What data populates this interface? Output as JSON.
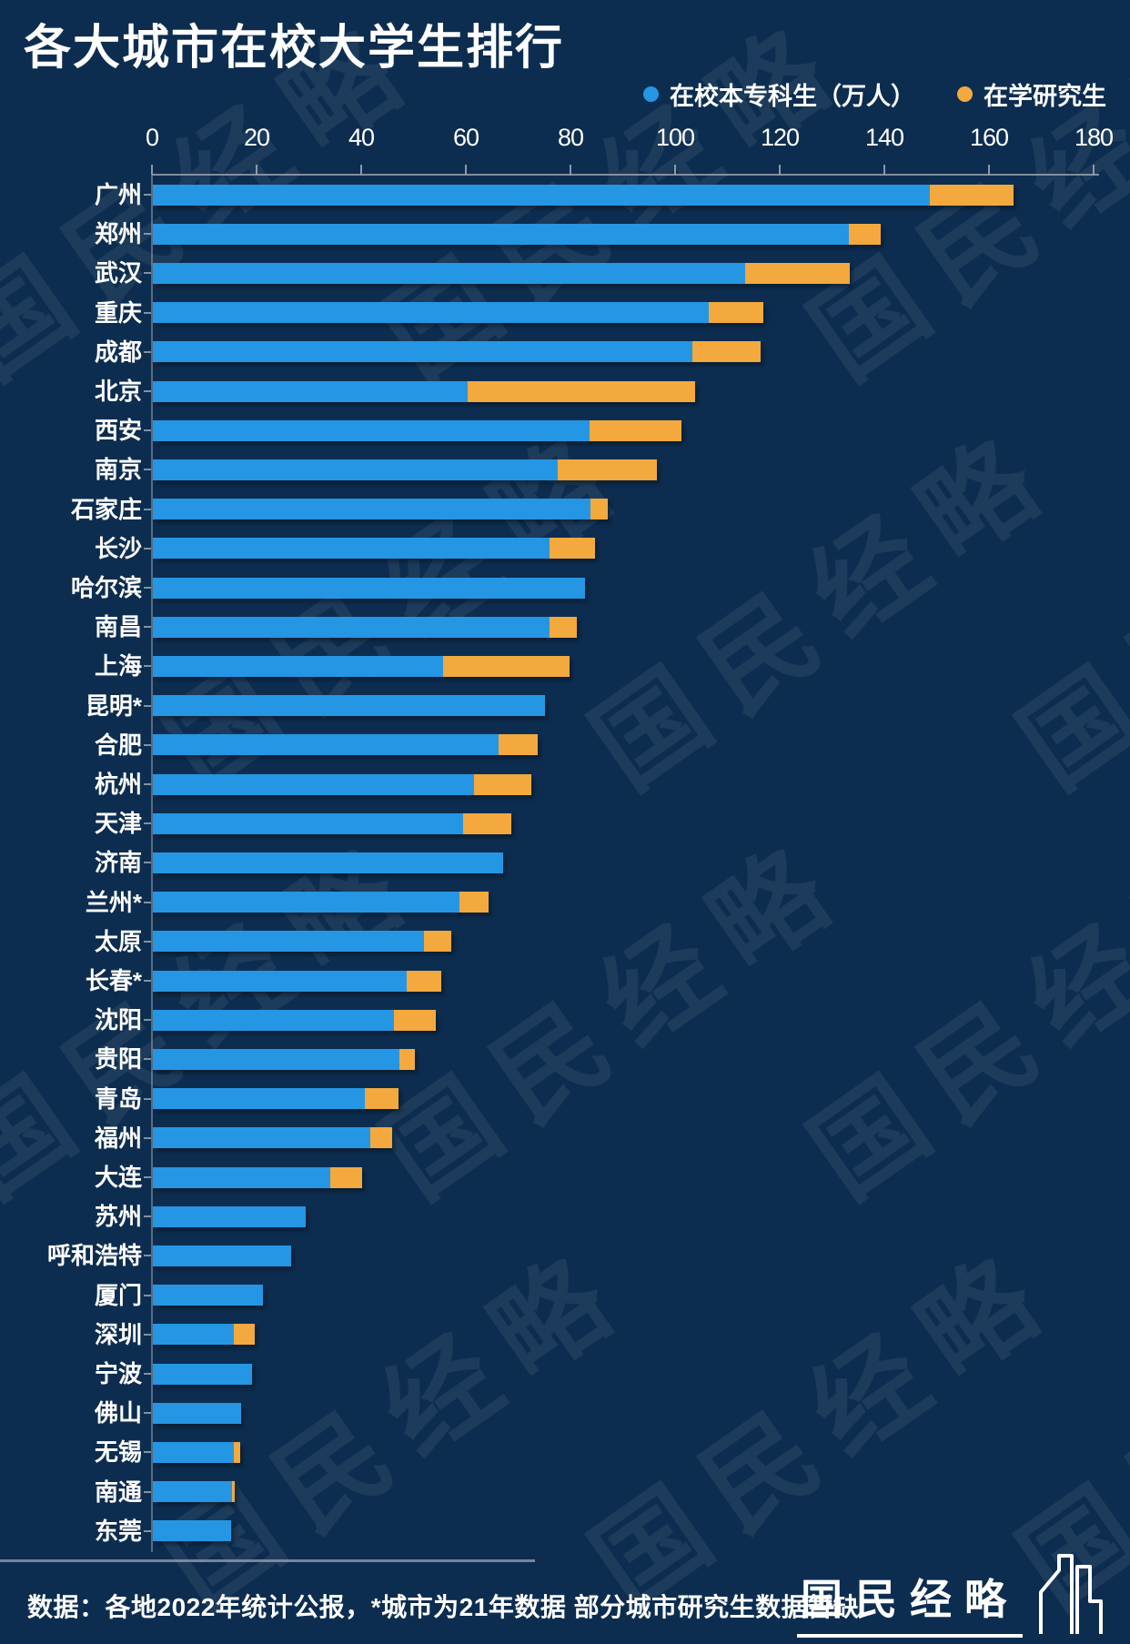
{
  "title": "各大城市在校大学生排行",
  "legend": [
    {
      "label": "在校本专科生（万人）",
      "color": "#2596e4"
    },
    {
      "label": "在学研究生",
      "color": "#f3a93d"
    }
  ],
  "colors": {
    "background": "#0d2d50",
    "undergrad_bar": "#2596e4",
    "grad_bar": "#f3a93d",
    "axis": "#96a0ad",
    "text": "#ffffff"
  },
  "watermark": {
    "text": "国民经略"
  },
  "chart_data": {
    "type": "bar",
    "orientation": "horizontal",
    "stacked": true,
    "title": "各大城市在校大学生排行",
    "unit": "万人",
    "xlim": [
      0,
      180
    ],
    "x_ticks": [
      0,
      20,
      40,
      60,
      80,
      100,
      120,
      140,
      160,
      180
    ],
    "grid": false,
    "legend_position": "top-right",
    "categories": [
      "广州",
      "郑州",
      "武汉",
      "重庆",
      "成都",
      "北京",
      "西安",
      "南京",
      "石家庄",
      "长沙",
      "哈尔滨",
      "南昌",
      "上海",
      "昆明*",
      "合肥",
      "杭州",
      "天津",
      "济南",
      "兰州*",
      "太原",
      "长春*",
      "沈阳",
      "贵阳",
      "青岛",
      "福州",
      "大连",
      "苏州",
      "呼和浩特",
      "厦门",
      "深圳",
      "宁波",
      "佛山",
      "无锡",
      "南通",
      "东莞"
    ],
    "series": [
      {
        "name": "在校本专科生（万人）",
        "color": "#2596e4",
        "values": [
          148.5,
          133.0,
          113.3,
          106.3,
          103.2,
          60.2,
          83.5,
          77.4,
          83.6,
          75.9,
          82.6,
          75.8,
          55.5,
          75.0,
          66.0,
          61.4,
          59.3,
          67.0,
          58.6,
          51.9,
          48.6,
          46.0,
          47.2,
          40.5,
          41.5,
          33.9,
          29.3,
          26.4,
          21.1,
          15.5,
          19.0,
          16.8,
          15.5,
          15.1,
          14.9
        ]
      },
      {
        "name": "在学研究生",
        "color": "#f3a93d",
        "values": [
          16.0,
          6.1,
          19.9,
          10.4,
          12.9,
          43.4,
          17.6,
          19.0,
          3.4,
          8.6,
          0,
          5.2,
          24.1,
          0,
          7.6,
          11.0,
          9.2,
          0,
          5.6,
          5.1,
          6.5,
          8.0,
          2.9,
          6.5,
          4.3,
          6.1,
          0,
          0,
          0,
          4.0,
          0,
          0,
          1.2,
          0.6,
          0
        ]
      }
    ]
  },
  "footer": {
    "note": "数据：各地2022年统计公报，*城市为21年数据 部分城市研究生数据暂缺",
    "logo_text": "国民经略"
  }
}
